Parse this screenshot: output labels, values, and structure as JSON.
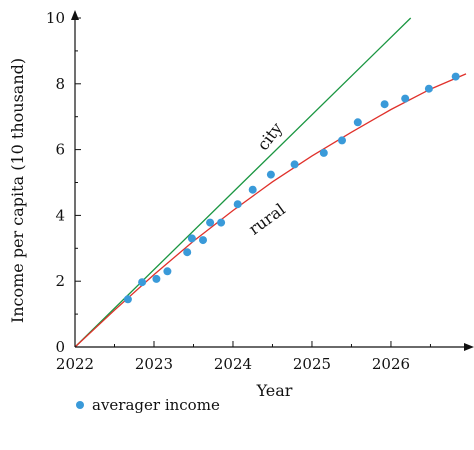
{
  "chart_data": {
    "type": "scatter",
    "title": "",
    "xlabel": "Year",
    "ylabel": "Income per capita (10 thousand)",
    "xlim": [
      2022,
      2026.95
    ],
    "ylim": [
      0,
      10
    ],
    "xticks": [
      2022,
      2023,
      2024,
      2025,
      2026
    ],
    "xtick_labels": [
      "2022",
      "2023",
      "2024",
      "2025",
      "2026"
    ],
    "yticks": [
      0,
      2,
      4,
      6,
      8,
      10
    ],
    "ytick_labels": [
      "0",
      "2",
      "4",
      "6",
      "8",
      "10"
    ],
    "grid": false,
    "legend_position": "bottom-left",
    "series": [
      {
        "name": "averager income",
        "kind": "scatter",
        "color": "#3a9ad9",
        "x": [
          2022.67,
          2022.85,
          2023.03,
          2023.17,
          2023.42,
          2023.48,
          2023.62,
          2023.71,
          2023.85,
          2024.06,
          2024.25,
          2024.48,
          2024.78,
          2025.15,
          2025.38,
          2025.58,
          2025.92,
          2026.18,
          2026.48,
          2026.82
        ],
        "y": [
          1.45,
          1.97,
          2.07,
          2.3,
          2.88,
          3.3,
          3.25,
          3.78,
          3.78,
          4.34,
          4.78,
          5.24,
          5.55,
          5.9,
          6.28,
          6.83,
          7.38,
          7.55,
          7.85,
          8.22
        ]
      },
      {
        "name": "",
        "kind": "line",
        "color": "#1a9641",
        "x": [
          2022,
          2026.25
        ],
        "y": [
          0,
          10
        ]
      },
      {
        "name": "",
        "kind": "line",
        "color": "#e0312b",
        "x": [
          2022,
          2022.5,
          2023,
          2023.5,
          2024,
          2024.5,
          2025,
          2025.5,
          2026,
          2026.5,
          2026.95
        ],
        "y": [
          0,
          1.12,
          2.2,
          3.22,
          4.15,
          5.02,
          5.81,
          6.53,
          7.22,
          7.84,
          8.3
        ]
      }
    ],
    "annotations": [
      {
        "text": "city",
        "x": 2024.52,
        "y": 6.3,
        "angle": -53
      },
      {
        "text": "rural",
        "x": 2024.47,
        "y": 3.75,
        "angle": -36
      }
    ]
  }
}
